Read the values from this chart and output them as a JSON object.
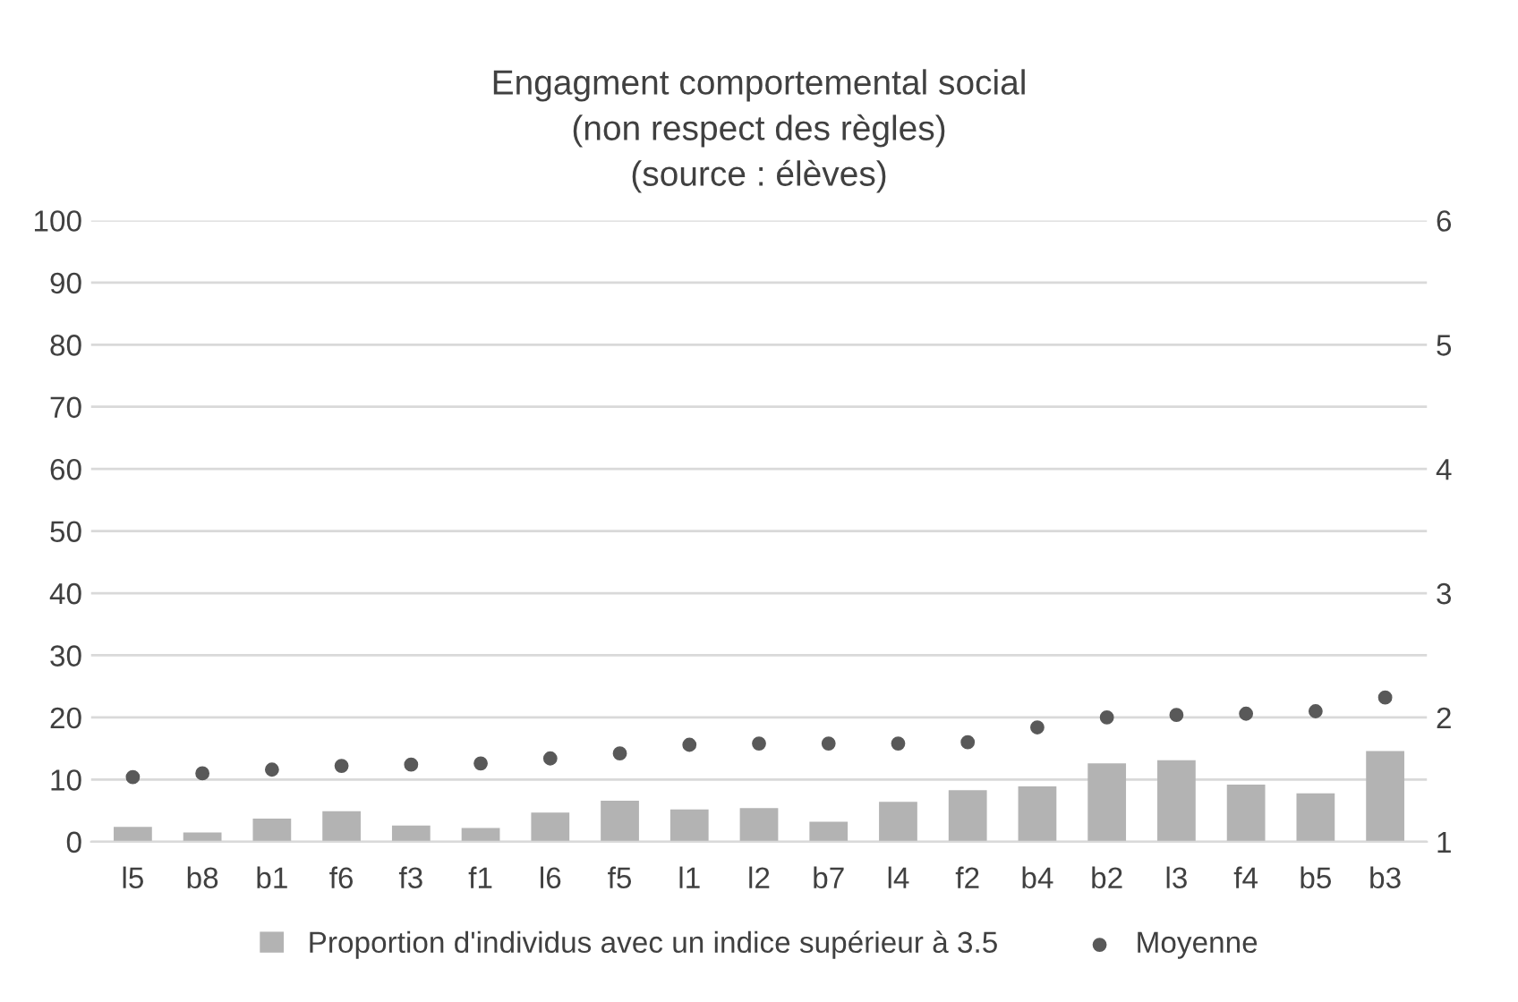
{
  "chart_data": {
    "type": "bar",
    "title": "Engagment comportemental social\n(non respect des règles)\n(source : élèves)",
    "categories": [
      "l5",
      "b8",
      "b1",
      "f6",
      "f3",
      "f1",
      "l6",
      "f5",
      "l1",
      "l2",
      "b7",
      "l4",
      "f2",
      "b4",
      "b2",
      "l3",
      "f4",
      "b5",
      "b3"
    ],
    "series": [
      {
        "name": "Proportion d'individus avec un indice supérieur à 3.5",
        "color": "#b3b3b3",
        "values": [
          2.4,
          1.5,
          3.7,
          4.9,
          2.6,
          2.2,
          4.7,
          6.6,
          5.2,
          5.4,
          3.2,
          6.4,
          8.3,
          8.9,
          12.6,
          13.1,
          9.2,
          7.8,
          14.6
        ]
      },
      {
        "name": "Moyenne",
        "color": "#595959",
        "type": "scatter",
        "axis": "y2",
        "marker": "circle",
        "values": [
          1.52,
          1.55,
          1.58,
          1.61,
          1.62,
          1.63,
          1.67,
          1.71,
          1.78,
          1.79,
          1.79,
          1.79,
          1.8,
          1.92,
          2.0,
          2.02,
          2.03,
          2.05,
          2.16
        ]
      }
    ],
    "ylim": [
      0,
      100
    ],
    "yticks": [
      0,
      10,
      20,
      30,
      40,
      50,
      60,
      70,
      80,
      90,
      100
    ],
    "y2lim": [
      1,
      6
    ],
    "y2ticks": [
      1,
      2,
      3,
      4,
      5,
      6
    ],
    "grid": "y",
    "legend": "bottom"
  }
}
